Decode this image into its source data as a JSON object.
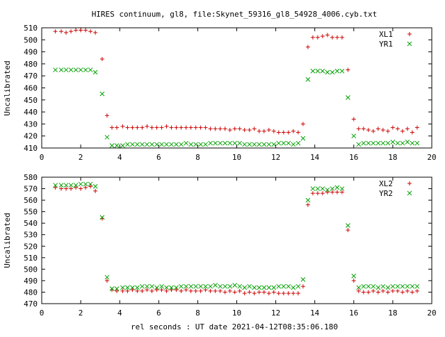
{
  "title": "HIRES continuum, gl8, file:Skynet_59316_gl8_54928_4006.cyb.txt",
  "xlabel": "rel seconds : UT date 2021-04-12T08:35:06.180",
  "chart_data": [
    {
      "type": "scatter",
      "ylabel": "Uncalibrated",
      "xlim": [
        0,
        20
      ],
      "ylim": [
        410,
        510
      ],
      "xticks": [
        0,
        2,
        4,
        6,
        8,
        10,
        12,
        14,
        16,
        18,
        20
      ],
      "yticks": [
        410,
        420,
        430,
        440,
        450,
        460,
        470,
        480,
        490,
        500,
        510
      ],
      "legend_position": "top-right",
      "series": [
        {
          "name": "XL1",
          "marker": "plus",
          "color": "#cc0000",
          "x": [
            0.7,
            1.0,
            1.25,
            1.5,
            1.75,
            2.0,
            2.25,
            2.5,
            2.75,
            3.1,
            3.35,
            3.6,
            3.85,
            4.15,
            4.4,
            4.65,
            4.9,
            5.15,
            5.4,
            5.65,
            5.9,
            6.15,
            6.4,
            6.65,
            6.9,
            7.15,
            7.4,
            7.65,
            7.9,
            8.15,
            8.4,
            8.65,
            8.9,
            9.15,
            9.4,
            9.65,
            9.9,
            10.15,
            10.4,
            10.65,
            10.9,
            11.15,
            11.4,
            11.65,
            11.9,
            12.15,
            12.4,
            12.65,
            12.9,
            13.15,
            13.4,
            13.65,
            13.9,
            14.15,
            14.4,
            14.65,
            14.9,
            15.15,
            15.4,
            15.7,
            16.0,
            16.25,
            16.5,
            16.75,
            17.0,
            17.25,
            17.5,
            17.75,
            18.0,
            18.25,
            18.5,
            18.75,
            19.0,
            19.25
          ],
          "y": [
            507,
            507,
            506,
            507,
            508,
            508,
            508,
            507,
            506,
            484,
            437,
            427,
            427,
            428,
            427,
            427,
            427,
            427,
            428,
            427,
            427,
            427,
            428,
            427,
            427,
            427,
            427,
            427,
            427,
            427,
            427,
            426,
            426,
            426,
            426,
            425,
            426,
            426,
            425,
            425,
            426,
            424,
            424,
            425,
            424,
            423,
            423,
            423,
            424,
            423,
            430,
            494,
            502,
            502,
            503,
            504,
            502,
            502,
            502,
            475,
            434,
            426,
            426,
            425,
            424,
            426,
            425,
            424,
            427,
            426,
            424,
            426,
            423,
            427
          ]
        },
        {
          "name": "YR1",
          "marker": "cross",
          "color": "#00a000",
          "x": [
            0.7,
            1.0,
            1.25,
            1.5,
            1.75,
            2.0,
            2.25,
            2.5,
            2.75,
            3.1,
            3.35,
            3.6,
            3.85,
            4.15,
            4.4,
            4.65,
            4.9,
            5.15,
            5.4,
            5.65,
            5.9,
            6.15,
            6.4,
            6.65,
            6.9,
            7.15,
            7.4,
            7.65,
            7.9,
            8.15,
            8.4,
            8.65,
            8.9,
            9.15,
            9.4,
            9.65,
            9.9,
            10.15,
            10.4,
            10.65,
            10.9,
            11.15,
            11.4,
            11.65,
            11.9,
            12.15,
            12.4,
            12.65,
            12.9,
            13.15,
            13.4,
            13.65,
            13.9,
            14.15,
            14.4,
            14.65,
            14.9,
            15.15,
            15.4,
            15.7,
            16.0,
            16.25,
            16.5,
            16.75,
            17.0,
            17.25,
            17.5,
            17.75,
            18.0,
            18.25,
            18.5,
            18.75,
            19.0,
            19.25
          ],
          "y": [
            475,
            475,
            475,
            475,
            475,
            475,
            475,
            475,
            473,
            455,
            419,
            412,
            412,
            412,
            413,
            413,
            413,
            413,
            413,
            413,
            413,
            413,
            413,
            413,
            413,
            413,
            414,
            413,
            413,
            413,
            413,
            414,
            414,
            414,
            414,
            414,
            414,
            414,
            413,
            413,
            413,
            413,
            413,
            413,
            413,
            414,
            414,
            414,
            413,
            414,
            418,
            467,
            474,
            474,
            474,
            473,
            473,
            474,
            474,
            452,
            420,
            413,
            414,
            414,
            414,
            414,
            414,
            414,
            415,
            414,
            414,
            415,
            414,
            414
          ]
        }
      ]
    },
    {
      "type": "scatter",
      "ylabel": "Uncalibrated",
      "xlim": [
        0,
        20
      ],
      "ylim": [
        470,
        580
      ],
      "xticks": [
        0,
        2,
        4,
        6,
        8,
        10,
        12,
        14,
        16,
        18,
        20
      ],
      "yticks": [
        470,
        480,
        490,
        500,
        510,
        520,
        530,
        540,
        550,
        560,
        570,
        580
      ],
      "legend_position": "top-right",
      "series": [
        {
          "name": "XL2",
          "marker": "plus",
          "color": "#cc0000",
          "x": [
            0.7,
            1.0,
            1.25,
            1.5,
            1.75,
            2.0,
            2.25,
            2.5,
            2.75,
            3.1,
            3.35,
            3.6,
            3.85,
            4.15,
            4.4,
            4.65,
            4.9,
            5.15,
            5.4,
            5.65,
            5.9,
            6.15,
            6.4,
            6.65,
            6.9,
            7.15,
            7.4,
            7.65,
            7.9,
            8.15,
            8.4,
            8.65,
            8.9,
            9.15,
            9.4,
            9.65,
            9.9,
            10.15,
            10.4,
            10.65,
            10.9,
            11.15,
            11.4,
            11.65,
            11.9,
            12.15,
            12.4,
            12.65,
            12.9,
            13.15,
            13.4,
            13.65,
            13.9,
            14.15,
            14.4,
            14.65,
            14.9,
            15.15,
            15.4,
            15.7,
            16.0,
            16.25,
            16.5,
            16.75,
            17.0,
            17.25,
            17.5,
            17.75,
            18.0,
            18.25,
            18.5,
            18.75,
            19.0,
            19.25
          ],
          "y": [
            571,
            570,
            570,
            570,
            571,
            570,
            571,
            572,
            568,
            544,
            490,
            482,
            481,
            481,
            481,
            482,
            481,
            481,
            482,
            481,
            482,
            482,
            481,
            482,
            482,
            481,
            482,
            481,
            481,
            481,
            482,
            481,
            481,
            481,
            480,
            481,
            480,
            481,
            479,
            480,
            479,
            480,
            480,
            479,
            480,
            479,
            479,
            479,
            479,
            479,
            485,
            556,
            566,
            566,
            566,
            567,
            567,
            567,
            567,
            534,
            490,
            481,
            480,
            480,
            481,
            480,
            481,
            480,
            481,
            481,
            480,
            481,
            480,
            481
          ]
        },
        {
          "name": "YR2",
          "marker": "cross",
          "color": "#00a000",
          "x": [
            0.7,
            1.0,
            1.25,
            1.5,
            1.75,
            2.0,
            2.25,
            2.5,
            2.75,
            3.1,
            3.35,
            3.6,
            3.85,
            4.15,
            4.4,
            4.65,
            4.9,
            5.15,
            5.4,
            5.65,
            5.9,
            6.15,
            6.4,
            6.65,
            6.9,
            7.15,
            7.4,
            7.65,
            7.9,
            8.15,
            8.4,
            8.65,
            8.9,
            9.15,
            9.4,
            9.65,
            9.9,
            10.15,
            10.4,
            10.65,
            10.9,
            11.15,
            11.4,
            11.65,
            11.9,
            12.15,
            12.4,
            12.65,
            12.9,
            13.15,
            13.4,
            13.65,
            13.9,
            14.15,
            14.4,
            14.65,
            14.9,
            15.15,
            15.4,
            15.7,
            16.0,
            16.25,
            16.5,
            16.75,
            17.0,
            17.25,
            17.5,
            17.75,
            18.0,
            18.25,
            18.5,
            18.75,
            19.0,
            19.25
          ],
          "y": [
            573,
            573,
            573,
            573,
            573,
            574,
            574,
            574,
            572,
            545,
            493,
            483,
            483,
            484,
            484,
            484,
            484,
            485,
            485,
            485,
            484,
            485,
            484,
            484,
            484,
            485,
            485,
            485,
            485,
            485,
            485,
            485,
            486,
            485,
            485,
            485,
            486,
            485,
            484,
            485,
            484,
            484,
            484,
            484,
            484,
            485,
            485,
            485,
            484,
            485,
            491,
            560,
            570,
            570,
            570,
            569,
            570,
            571,
            570,
            538,
            494,
            484,
            485,
            485,
            485,
            484,
            485,
            484,
            485,
            485,
            485,
            485,
            485,
            485
          ]
        }
      ]
    }
  ]
}
